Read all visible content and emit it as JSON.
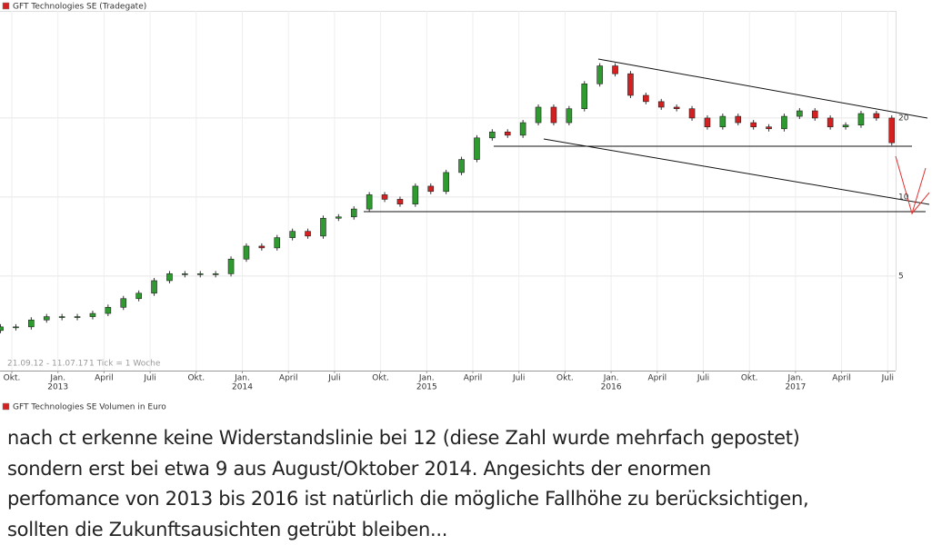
{
  "chart_data": {
    "type": "candlestick",
    "title": "GFT Technologies SE (Tradegate)",
    "date_range": "21.09.12 - 11.07.17",
    "tick_note": "1 Tick = 1 Woche",
    "open": [
      3.1,
      3.2,
      3.2,
      3.4,
      3.5,
      3.5,
      3.5,
      3.6,
      3.8,
      4.1,
      4.3,
      4.8,
      5.1,
      5.1,
      5.1,
      5.1,
      5.8,
      6.5,
      6.4,
      7.0,
      7.4,
      7.1,
      8.3,
      8.4,
      9.0,
      10.2,
      9.8,
      9.4,
      11.0,
      10.5,
      12.4,
      13.9,
      16.8,
      17.7,
      17.2,
      19.2,
      22.0,
      19.2,
      21.7,
      27.0,
      31.6,
      29.5,
      24.4,
      23.1,
      22.0,
      21.7,
      20.0,
      18.5,
      20.3,
      19.2,
      18.5,
      18.2,
      20.3,
      21.3,
      20.0,
      18.5,
      18.8,
      20.8,
      20.0
    ],
    "close": [
      3.2,
      3.2,
      3.4,
      3.5,
      3.5,
      3.5,
      3.6,
      3.8,
      4.1,
      4.3,
      4.8,
      5.1,
      5.1,
      5.1,
      5.1,
      5.8,
      6.5,
      6.4,
      7.0,
      7.4,
      7.1,
      8.3,
      8.4,
      9.0,
      10.2,
      9.8,
      9.4,
      11.0,
      10.5,
      12.4,
      13.9,
      16.8,
      17.7,
      17.2,
      19.2,
      22.0,
      19.2,
      21.7,
      27.0,
      31.6,
      29.5,
      24.4,
      23.1,
      22.0,
      21.7,
      20.0,
      18.5,
      20.3,
      19.2,
      18.5,
      18.2,
      20.3,
      21.3,
      20.0,
      18.5,
      18.8,
      20.8,
      20.0,
      16.1
    ],
    "up_color": "#2f9a2f",
    "down_color": "#d42020",
    "ylim": [
      2.18,
      51.2
    ],
    "yticks": [
      5,
      10,
      20
    ],
    "log_scale": true,
    "grid": true,
    "xtick_labels": [
      "Okt.",
      "Jan.",
      "April",
      "Juli",
      "Okt.",
      "Jan.",
      "April",
      "Juli",
      "Okt.",
      "Jan.",
      "April",
      "Juli",
      "Okt.",
      "Jan.",
      "April",
      "Juli",
      "Okt.",
      "Jan.",
      "April",
      "Juli"
    ],
    "xtick_years": [
      null,
      "2013",
      null,
      null,
      null,
      "2014",
      null,
      null,
      null,
      "2015",
      null,
      null,
      null,
      "2016",
      null,
      null,
      null,
      "2017",
      null,
      null
    ]
  },
  "volume_title": "GFT Technologies SE Volumen in Euro",
  "post": {
    "lines": [
      "nach ct erkenne keine Widerstandslinie bei 12 (diese Zahl wurde mehrfach gepostet)",
      "sondern erst bei etwa 9 aus August/Oktober 2014. Angesichts der enormen",
      "perfomance von 2013 bis 2016 ist natürlich die mögliche Fallhöhe zu berücksichtigen,",
      "sollten die Zukunftsausichten getrübt bleiben..."
    ]
  }
}
